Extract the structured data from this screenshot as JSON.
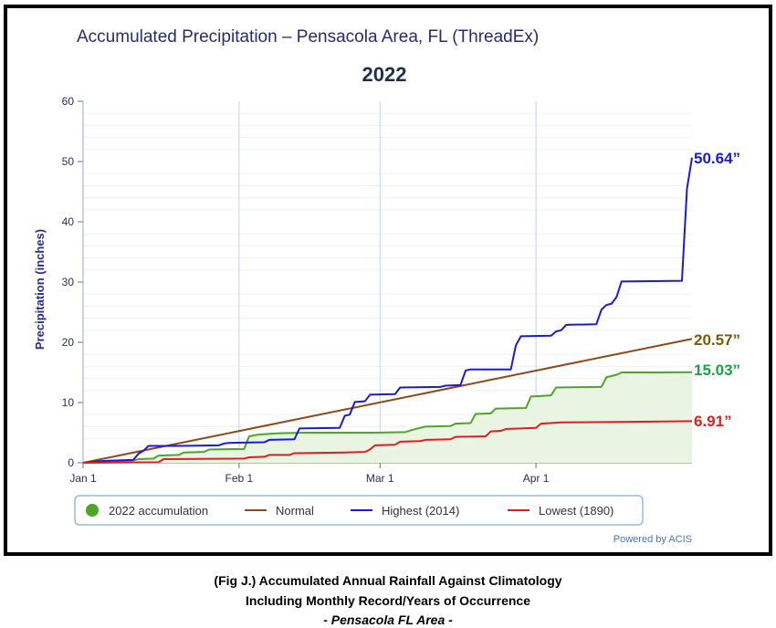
{
  "chart_data": {
    "type": "line",
    "title": "Accumulated Precipitation – Pensacola Area, FL (ThreadEx)",
    "subtitle": "2022",
    "ylabel": "Precipitation (inches)",
    "xlabel": "",
    "ylim": [
      0,
      60
    ],
    "yticks": [
      0,
      10,
      20,
      30,
      40,
      50,
      60
    ],
    "xticks": [
      {
        "label": "Jan 1",
        "day": 1
      },
      {
        "label": "Feb 1",
        "day": 32
      },
      {
        "label": "Mar 1",
        "day": 60
      },
      {
        "label": "Apr 1",
        "day": 91
      }
    ],
    "xlim": [
      1,
      122
    ],
    "grid": true,
    "legend_position": "bottom",
    "series": [
      {
        "name": "2022 accumulation",
        "color": "#4da52a",
        "fill": "#e9f4e2",
        "end_label": "15.03”",
        "label_color": "#18a34a",
        "points": [
          [
            1,
            0
          ],
          [
            10,
            0.2
          ],
          [
            12,
            0.6
          ],
          [
            15,
            0.7
          ],
          [
            16,
            1.2
          ],
          [
            20,
            1.3
          ],
          [
            21,
            1.7
          ],
          [
            25,
            1.8
          ],
          [
            26,
            2.2
          ],
          [
            33,
            2.3
          ],
          [
            34,
            4.4
          ],
          [
            36,
            4.7
          ],
          [
            40,
            4.9
          ],
          [
            45,
            5.0
          ],
          [
            52,
            5.0
          ],
          [
            59,
            5.0
          ],
          [
            65,
            5.1
          ],
          [
            67,
            5.6
          ],
          [
            69,
            6.0
          ],
          [
            74,
            6.1
          ],
          [
            75,
            6.5
          ],
          [
            78,
            6.6
          ],
          [
            79,
            8.1
          ],
          [
            82,
            8.2
          ],
          [
            83,
            9.0
          ],
          [
            89,
            9.1
          ],
          [
            90,
            11.0
          ],
          [
            94,
            11.2
          ],
          [
            95,
            12.5
          ],
          [
            104,
            12.6
          ],
          [
            105,
            14.2
          ],
          [
            107,
            14.6
          ],
          [
            108,
            15.0
          ],
          [
            115,
            15.0
          ],
          [
            122,
            15.03
          ]
        ]
      },
      {
        "name": "Normal",
        "color": "#8b4a1c",
        "end_label": "20.57”",
        "label_color": "#7a5a0e",
        "points": [
          [
            1,
            0
          ],
          [
            122,
            20.57
          ]
        ]
      },
      {
        "name": "Highest (2014)",
        "color": "#1a1adb",
        "end_label": "50.64”",
        "label_color": "#1a1adb",
        "points": [
          [
            1,
            0
          ],
          [
            5,
            0.3
          ],
          [
            11,
            0.5
          ],
          [
            12,
            1.5
          ],
          [
            13,
            2.0
          ],
          [
            14,
            2.8
          ],
          [
            20,
            2.8
          ],
          [
            28,
            2.9
          ],
          [
            29,
            3.2
          ],
          [
            30,
            3.3
          ],
          [
            37,
            3.4
          ],
          [
            38,
            3.8
          ],
          [
            43,
            3.9
          ],
          [
            44,
            5.7
          ],
          [
            52,
            5.8
          ],
          [
            53,
            7.8
          ],
          [
            54,
            8.0
          ],
          [
            55,
            10.1
          ],
          [
            57,
            10.2
          ],
          [
            58,
            11.3
          ],
          [
            63,
            11.4
          ],
          [
            64,
            12.5
          ],
          [
            72,
            12.6
          ],
          [
            73,
            12.8
          ],
          [
            76,
            12.9
          ],
          [
            77,
            15.3
          ],
          [
            78,
            15.5
          ],
          [
            86,
            15.5
          ],
          [
            87,
            19.5
          ],
          [
            88,
            21.0
          ],
          [
            94,
            21.1
          ],
          [
            95,
            21.8
          ],
          [
            96,
            22.0
          ],
          [
            97,
            22.9
          ],
          [
            103,
            23.0
          ],
          [
            104,
            25.4
          ],
          [
            105,
            26.2
          ],
          [
            106,
            26.4
          ],
          [
            107,
            27.5
          ],
          [
            108,
            30.1
          ],
          [
            120,
            30.2
          ],
          [
            121,
            45.5
          ],
          [
            122,
            50.64
          ]
        ]
      },
      {
        "name": "Lowest (1890)",
        "color": "#e01e1e",
        "end_label": "6.91”",
        "label_color": "#e01e1e",
        "points": [
          [
            1,
            0
          ],
          [
            16,
            0.1
          ],
          [
            17,
            0.6
          ],
          [
            33,
            0.7
          ],
          [
            34,
            0.9
          ],
          [
            37,
            1.0
          ],
          [
            38,
            1.3
          ],
          [
            42,
            1.3
          ],
          [
            43,
            1.6
          ],
          [
            53,
            1.7
          ],
          [
            57,
            1.8
          ],
          [
            58,
            2.2
          ],
          [
            59,
            2.9
          ],
          [
            63,
            3.0
          ],
          [
            64,
            3.5
          ],
          [
            68,
            3.6
          ],
          [
            69,
            3.8
          ],
          [
            74,
            3.9
          ],
          [
            75,
            4.3
          ],
          [
            81,
            4.4
          ],
          [
            82,
            5.2
          ],
          [
            84,
            5.3
          ],
          [
            85,
            5.6
          ],
          [
            91,
            5.8
          ],
          [
            92,
            6.5
          ],
          [
            96,
            6.7
          ],
          [
            110,
            6.8
          ],
          [
            122,
            6.91
          ]
        ]
      }
    ],
    "credit": "Powered by ACIS"
  },
  "caption": {
    "line1": "(Fig J.) Accumulated Annual Rainfall Against  Climatology",
    "line2": "Including Monthly Record/Years of Occurrence",
    "line3": "- Pensacola FL Area -"
  }
}
